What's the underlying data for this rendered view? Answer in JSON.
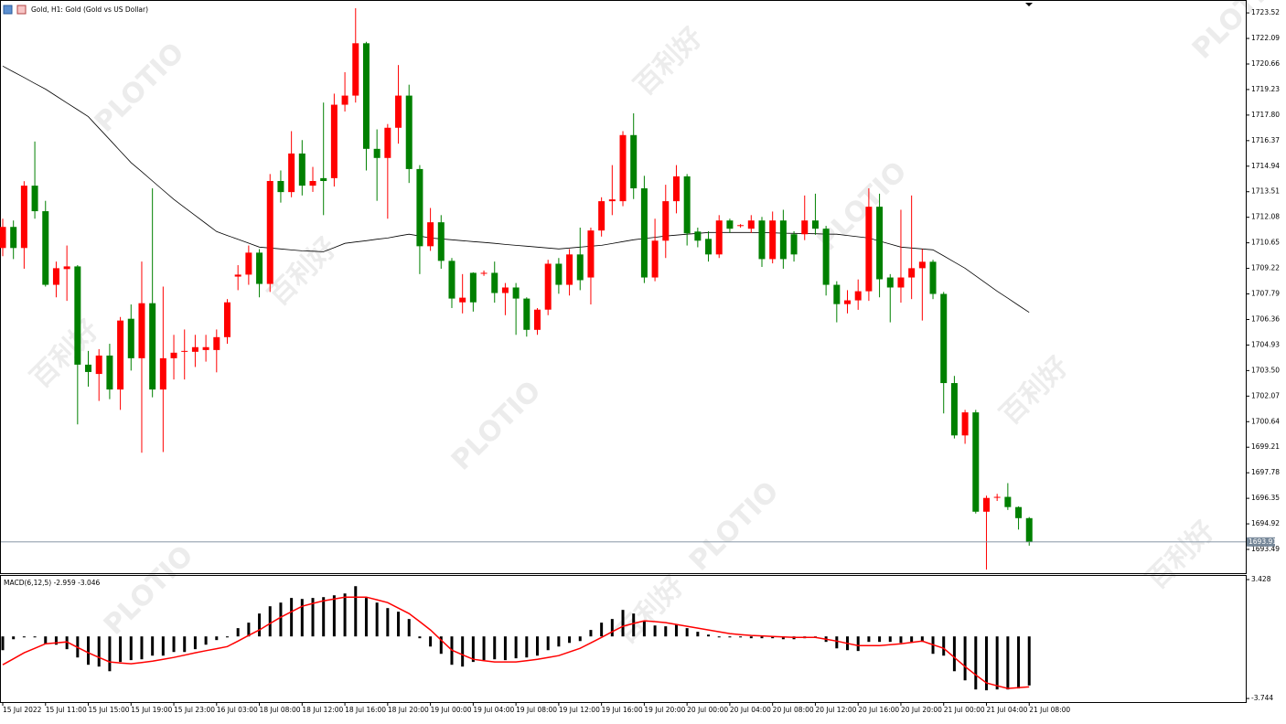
{
  "watermark": {
    "brand": "PLOTIO",
    "name": "百利好"
  },
  "chart_data": [
    {
      "type": "candlestick",
      "title": "Gold, H1:  Gold (Gold vs US Dollar)",
      "categories": [
        "15 Jul 2022",
        null,
        null,
        null,
        "15 Jul 11:00",
        null,
        null,
        null,
        "15 Jul 15:00",
        null,
        null,
        null,
        "15 Jul 19:00",
        null,
        null,
        null,
        "15 Jul 23:00",
        null,
        null,
        null,
        "16 Jul 03:00",
        null,
        null,
        null,
        "18 Jul 08:00",
        null,
        null,
        null,
        "18 Jul 12:00",
        null,
        null,
        null,
        "18 Jul 16:00",
        null,
        null,
        null,
        "18 Jul 20:00",
        null,
        null,
        null,
        "19 Jul 00:00",
        null,
        null,
        null,
        "19 Jul 04:00",
        null,
        null,
        null,
        "19 Jul 08:00",
        null,
        null,
        null,
        "19 Jul 12:00",
        null,
        null,
        null,
        "19 Jul 16:00",
        null,
        null,
        null,
        "19 Jul 20:00",
        null,
        null,
        null,
        "20 Jul 00:00",
        null,
        null,
        null,
        "20 Jul 04:00",
        null,
        null,
        null,
        "20 Jul 08:00",
        null,
        null,
        null,
        "20 Jul 12:00",
        null,
        null,
        null,
        "20 Jul 16:00",
        null,
        null,
        null,
        "20 Jul 20:00",
        null,
        null,
        null,
        "21 Jul 00:00",
        null,
        null,
        null,
        "21 Jul 04:00",
        null,
        null,
        null,
        "21 Jul 08:00"
      ],
      "open": [
        1710.36,
        1711.54,
        1710.36,
        1713.85,
        1712.42,
        1708.3,
        1709.18,
        1709.33,
        1703.83,
        1703.31,
        1704.34,
        1702.44,
        1706.4,
        1704.19,
        1707.27,
        1702.44,
        1704.19,
        1704.55,
        1704.55,
        1704.65,
        1704.65,
        1705.37,
        1708.76,
        1708.87,
        1710.1,
        1708.35,
        1714.11,
        1713.49,
        1715.65,
        1713.85,
        1714.27,
        1714.27,
        1718.38,
        1718.89,
        1721.82,
        1715.91,
        1715.4,
        1717.09,
        1718.89,
        1714.78,
        1710.46,
        1711.8,
        1709.64,
        1707.32,
        1708.97,
        1708.97,
        1708.97,
        1707.84,
        1708.15,
        1707.53,
        1705.78,
        1706.91,
        1709.48,
        1708.3,
        1710.0,
        1708.71,
        1711.34,
        1712.98,
        1712.98,
        1716.68,
        1713.7,
        1708.71,
        1710.77,
        1712.98,
        1714.37,
        1711.28,
        1710.87,
        1710.0,
        1711.9,
        1711.64,
        1711.44,
        1711.9,
        1709.74,
        1711.9,
        1711.13,
        1711.13,
        1711.9,
        1711.44,
        1708.3,
        1707.22,
        1707.43,
        1707.94,
        1712.67,
        1708.71,
        1708.15,
        1708.71,
        1709.23,
        1709.59,
        1707.79,
        1702.8,
        1699.87,
        1701.16,
        1695.6,
        1696.43,
        1696.43,
        1695.86,
        1695.24
      ],
      "high": [
        1712.0,
        1711.9,
        1714.1,
        1716.32,
        1713.0,
        1709.6,
        1710.5,
        1709.4,
        1704.6,
        1704.7,
        1705.0,
        1706.5,
        1707.2,
        1709.6,
        1713.7,
        1708.2,
        1705.5,
        1705.8,
        1705.5,
        1705.5,
        1705.8,
        1707.5,
        1709.4,
        1710.5,
        1710.3,
        1714.5,
        1714.7,
        1716.9,
        1716.4,
        1714.9,
        1718.5,
        1719.0,
        1720.2,
        1723.78,
        1721.9,
        1717.0,
        1717.3,
        1720.6,
        1719.5,
        1715.0,
        1712.6,
        1712.2,
        1709.8,
        1708.9,
        1709.0,
        1709.1,
        1709.6,
        1708.4,
        1708.4,
        1707.6,
        1707.0,
        1709.7,
        1709.8,
        1710.3,
        1711.5,
        1711.5,
        1713.2,
        1715.0,
        1716.9,
        1717.9,
        1714.4,
        1712.0,
        1713.9,
        1715.0,
        1714.5,
        1711.5,
        1711.3,
        1712.2,
        1712.0,
        1711.7,
        1712.2,
        1712.1,
        1712.4,
        1712.5,
        1711.3,
        1713.3,
        1713.4,
        1711.6,
        1708.5,
        1708.0,
        1708.6,
        1713.7,
        1713.4,
        1708.9,
        1712.5,
        1713.3,
        1710.3,
        1709.7,
        1707.9,
        1703.2,
        1701.3,
        1701.3,
        1696.5,
        1696.6,
        1697.2,
        1695.9,
        1695.3
      ],
      "low": [
        1709.9,
        1709.74,
        1709.2,
        1712.0,
        1708.2,
        1707.6,
        1707.4,
        1700.49,
        1702.6,
        1701.8,
        1701.9,
        1701.3,
        1703.5,
        1698.9,
        1702.0,
        1698.94,
        1703.0,
        1703.0,
        1703.7,
        1704.0,
        1703.4,
        1705.0,
        1708.0,
        1708.3,
        1707.6,
        1707.9,
        1712.9,
        1713.2,
        1713.3,
        1713.5,
        1712.2,
        1713.8,
        1718.0,
        1718.5,
        1714.7,
        1713.0,
        1712.0,
        1716.2,
        1714.0,
        1708.9,
        1710.2,
        1709.2,
        1707.0,
        1706.7,
        1706.8,
        1708.8,
        1707.3,
        1706.6,
        1705.5,
        1705.4,
        1705.5,
        1706.6,
        1707.8,
        1707.7,
        1708.0,
        1707.2,
        1711.0,
        1712.2,
        1712.7,
        1713.1,
        1708.4,
        1708.5,
        1709.8,
        1712.3,
        1710.5,
        1710.4,
        1709.6,
        1709.8,
        1711.2,
        1711.5,
        1711.2,
        1709.3,
        1709.5,
        1709.2,
        1709.6,
        1710.8,
        1711.1,
        1707.7,
        1706.2,
        1706.7,
        1706.9,
        1707.4,
        1707.6,
        1706.2,
        1707.3,
        1707.5,
        1706.3,
        1707.5,
        1701.1,
        1699.7,
        1699.4,
        1695.5,
        1692.36,
        1696.2,
        1695.7,
        1694.6,
        1693.7
      ],
      "close": [
        1711.54,
        1710.36,
        1713.85,
        1712.42,
        1708.3,
        1709.23,
        1709.33,
        1703.83,
        1703.42,
        1704.34,
        1702.44,
        1706.3,
        1704.19,
        1707.27,
        1702.44,
        1704.19,
        1704.5,
        1704.6,
        1704.81,
        1704.81,
        1705.37,
        1707.32,
        1708.87,
        1710.1,
        1708.35,
        1714.11,
        1713.49,
        1715.65,
        1713.85,
        1714.11,
        1714.11,
        1718.38,
        1718.89,
        1721.82,
        1715.91,
        1715.4,
        1717.09,
        1718.89,
        1714.78,
        1710.46,
        1711.8,
        1709.64,
        1707.53,
        1707.58,
        1707.32,
        1708.97,
        1707.84,
        1708.15,
        1707.53,
        1705.78,
        1706.91,
        1709.48,
        1708.3,
        1710.0,
        1708.56,
        1711.34,
        1712.98,
        1713.08,
        1716.68,
        1713.7,
        1708.71,
        1710.77,
        1712.98,
        1714.37,
        1711.18,
        1710.77,
        1710.0,
        1711.9,
        1711.44,
        1711.64,
        1711.9,
        1709.74,
        1711.9,
        1709.74,
        1710.0,
        1711.9,
        1711.44,
        1708.3,
        1707.22,
        1707.43,
        1707.94,
        1712.67,
        1708.61,
        1708.15,
        1708.71,
        1709.23,
        1709.59,
        1707.79,
        1702.8,
        1699.87,
        1701.16,
        1695.6,
        1696.37,
        1696.43,
        1695.86,
        1695.24,
        1693.91
      ],
      "up_color": "#ff0000",
      "down_color": "#008000",
      "series": [
        {
          "color": "#000000",
          "values": [
            1720.54,
            1720.22,
            1719.9,
            1719.57,
            1719.25,
            1718.87,
            1718.48,
            1718.1,
            1717.71,
            1717.07,
            1716.43,
            1715.78,
            1715.14,
            1714.63,
            1714.11,
            1713.6,
            1713.08,
            1712.63,
            1712.18,
            1711.73,
            1711.28,
            1711.06,
            1710.85,
            1710.63,
            1710.41,
            1710.36,
            1710.31,
            1710.25,
            1710.2,
            1710.18,
            1710.15,
            1710.38,
            1710.62,
            1710.7,
            1710.77,
            1710.85,
            1710.92,
            1711.03,
            1711.13,
            1711.03,
            1710.92,
            1710.87,
            1710.82,
            1710.77,
            1710.72,
            1710.67,
            1710.62,
            1710.56,
            1710.51,
            1710.46,
            1710.41,
            1710.36,
            1710.31,
            1710.36,
            1710.41,
            1710.46,
            1710.51,
            1710.61,
            1710.72,
            1710.82,
            1710.89,
            1710.96,
            1711.03,
            1711.08,
            1711.13,
            1711.18,
            1711.23,
            1711.23,
            1711.23,
            1711.23,
            1711.23,
            1711.22,
            1711.21,
            1711.19,
            1711.18,
            1711.17,
            1711.16,
            1711.14,
            1711.13,
            1711.06,
            1710.99,
            1710.92,
            1710.75,
            1710.58,
            1710.41,
            1710.36,
            1710.31,
            1710.26,
            1709.92,
            1709.57,
            1709.23,
            1708.8,
            1708.37,
            1707.94,
            1707.55,
            1707.15,
            1706.76
          ]
        }
      ],
      "current_price": 1693.91,
      "ylim": [
        1692.16,
        1724.19
      ],
      "yticks": [
        1723.52,
        1722.09,
        1720.66,
        1719.23,
        {
          "value": 1717.8,
          "label": "1717.80"
        },
        1716.37,
        1714.94,
        1713.51,
        1712.08,
        1710.65,
        1709.22,
        1707.79,
        1706.36,
        1704.93,
        {
          "value": 1703.5,
          "label": "1703.50"
        },
        1702.07,
        1700.64,
        1699.21,
        1697.78,
        1696.35,
        1694.92,
        1693.49
      ]
    },
    {
      "type": "macd",
      "title": "MACD(6,12,5) -2.959 -3.046",
      "series": [
        {
          "type": "bar",
          "color": "#000000",
          "values": [
            -0.83,
            -0.17,
            -0.06,
            -0.06,
            -0.44,
            -0.5,
            -0.77,
            -1.27,
            -1.71,
            -1.82,
            -2.1,
            -1.54,
            -1.43,
            -1.38,
            -1.16,
            -1.16,
            -0.94,
            -0.94,
            -0.77,
            -0.5,
            -0.22,
            -0.06,
            0.5,
            0.83,
            1.38,
            1.82,
            2.04,
            2.32,
            2.26,
            2.32,
            2.37,
            2.48,
            2.59,
            3.03,
            2.32,
            2.04,
            1.71,
            1.49,
            1.05,
            -0.11,
            -0.61,
            -1.05,
            -1.71,
            -1.82,
            -1.54,
            -1.43,
            -1.38,
            -1.43,
            -1.32,
            -1.27,
            -1.16,
            -0.83,
            -0.61,
            -0.39,
            -0.28,
            0.39,
            0.83,
            1.05,
            1.6,
            1.38,
            0.94,
            0.66,
            0.61,
            0.72,
            0.5,
            0.28,
            0.11,
            -0.06,
            -0.06,
            -0.06,
            -0.11,
            -0.11,
            -0.11,
            -0.17,
            -0.17,
            -0.11,
            -0.06,
            -0.33,
            -0.72,
            -0.83,
            -0.88,
            -0.33,
            -0.33,
            -0.33,
            -0.39,
            -0.33,
            -0.33,
            -1.05,
            -1.16,
            -2.1,
            -2.65,
            -3.2,
            -3.25,
            -3.2,
            -3.2,
            -3.14,
            -2.959
          ]
        },
        {
          "type": "line",
          "color": "#ff0000",
          "values": [
            -1.71,
            -1.35,
            -0.99,
            -0.72,
            -0.44,
            -0.39,
            -0.33,
            -0.66,
            -0.99,
            -1.27,
            -1.54,
            -1.6,
            -1.65,
            -1.57,
            -1.49,
            -1.38,
            -1.27,
            -1.13,
            -0.99,
            -0.86,
            -0.74,
            -0.61,
            -0.28,
            0.06,
            0.39,
            0.78,
            1.16,
            1.49,
            1.82,
            1.99,
            2.15,
            2.26,
            2.37,
            2.37,
            2.37,
            2.21,
            2.04,
            1.71,
            1.38,
            0.89,
            0.39,
            -0.22,
            -0.83,
            -1.11,
            -1.38,
            -1.46,
            -1.54,
            -1.54,
            -1.54,
            -1.46,
            -1.38,
            -1.27,
            -1.16,
            -0.94,
            -0.72,
            -0.39,
            -0.06,
            0.28,
            0.61,
            0.78,
            0.94,
            0.89,
            0.83,
            0.72,
            0.61,
            0.5,
            0.39,
            0.28,
            0.17,
            0.11,
            0.06,
            0.03,
            0,
            -0.03,
            -0.06,
            -0.06,
            -0.06,
            -0.17,
            -0.28,
            -0.42,
            -0.55,
            -0.55,
            -0.55,
            -0.5,
            -0.44,
            -0.36,
            -0.28,
            -0.5,
            -0.72,
            -1.27,
            -1.82,
            -2.32,
            -2.81,
            -2.98,
            -3.14,
            -3.09,
            -3.046
          ]
        }
      ],
      "ylim": [
        -3.96,
        3.65
      ],
      "yticks": [
        3.428,
        -3.744
      ]
    }
  ]
}
